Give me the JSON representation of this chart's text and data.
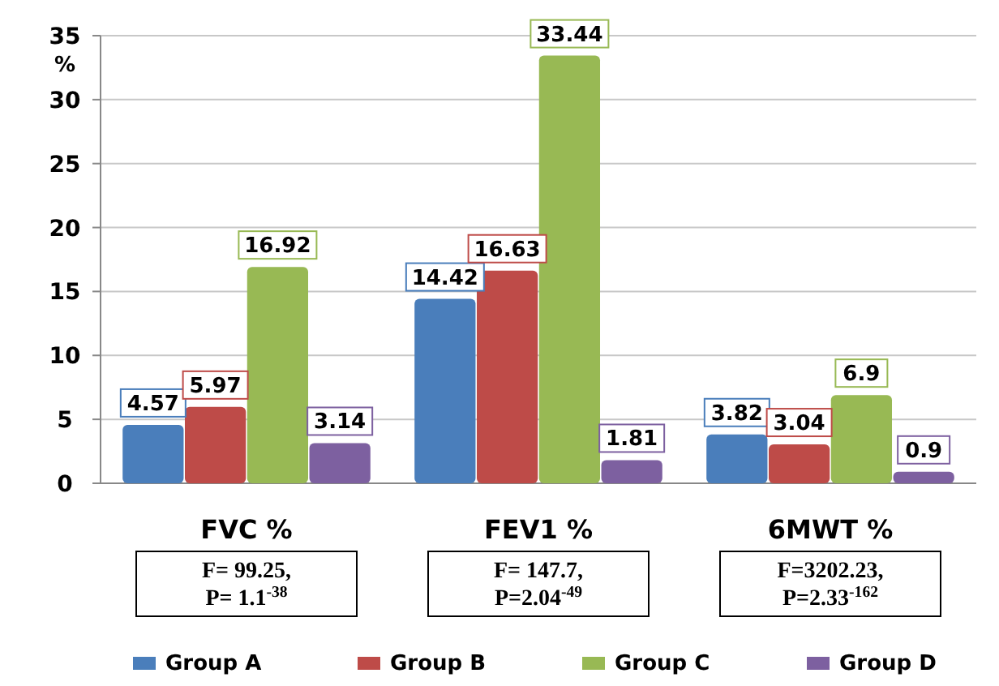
{
  "chart_data": {
    "type": "bar",
    "ylabel": "%",
    "categories": [
      "FVC %",
      "FEV1 %",
      "6MWT %"
    ],
    "series": [
      {
        "name": "Group A",
        "color": "#4a7ebb",
        "values": [
          4.57,
          14.42,
          3.82
        ]
      },
      {
        "name": "Group B",
        "color": "#be4b48",
        "values": [
          5.97,
          16.63,
          3.04
        ]
      },
      {
        "name": "Group C",
        "color": "#98b954",
        "values": [
          16.92,
          33.44,
          6.9
        ]
      },
      {
        "name": "Group D",
        "color": "#7d60a0",
        "values": [
          3.14,
          1.81,
          0.9
        ]
      }
    ],
    "ylim": [
      0,
      35
    ],
    "yticks": [
      0,
      5,
      10,
      15,
      20,
      25,
      30,
      35
    ],
    "grid": "y",
    "data_labels": true,
    "legend": "bottom",
    "annotations": [
      "F= 99.25, P= 1.1$^{-38}$",
      "F= 147.7, P=2.04$^{-49}$",
      "F=3202.23, P=2.33$^{-162}$"
    ]
  }
}
